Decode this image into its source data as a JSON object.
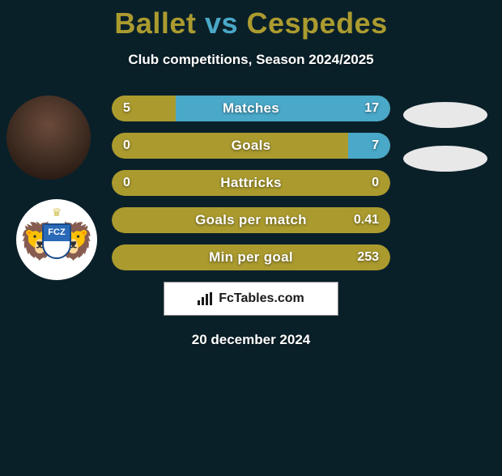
{
  "background_color": "#0a2029",
  "title": {
    "player1": "Ballet",
    "vs": "vs",
    "player2": "Cespedes",
    "player1_color": "#ab9b2f",
    "vs_color": "#4aa8c8",
    "player2_color": "#ab9b2f",
    "fontsize": 36
  },
  "subtitle": "Club competitions, Season 2024/2025",
  "player1_avatar": {
    "type": "photo"
  },
  "club_badge": {
    "initials": "FCZ",
    "shield_color": "#2a6ab8",
    "accent_color": "#d4c45a"
  },
  "bars": {
    "left_color": "#ab9b2f",
    "right_color": "#4aa8c8",
    "neutral_color": "#ab9b2f",
    "height": 32,
    "radius": 16,
    "label_fontsize": 17,
    "value_fontsize": 16,
    "rows": [
      {
        "label": "Matches",
        "left": "5",
        "right": "17",
        "left_pct": 23,
        "right_pct": 77,
        "show_left_fill": true,
        "show_right_fill": true
      },
      {
        "label": "Goals",
        "left": "0",
        "right": "7",
        "left_pct": 0,
        "right_pct": 15,
        "show_left_fill": false,
        "show_right_fill": true
      },
      {
        "label": "Hattricks",
        "left": "0",
        "right": "0",
        "left_pct": 0,
        "right_pct": 0,
        "show_left_fill": false,
        "show_right_fill": false
      },
      {
        "label": "Goals per match",
        "left": "",
        "right": "0.41",
        "left_pct": 0,
        "right_pct": 0,
        "show_left_fill": false,
        "show_right_fill": false
      },
      {
        "label": "Min per goal",
        "left": "",
        "right": "253",
        "left_pct": 0,
        "right_pct": 0,
        "show_left_fill": false,
        "show_right_fill": false
      }
    ]
  },
  "brand": {
    "text": "FcTables.com",
    "icon_color": "#1a1a1a",
    "text_color": "#1a1a1a",
    "bg": "#ffffff"
  },
  "date": "20 december 2024"
}
